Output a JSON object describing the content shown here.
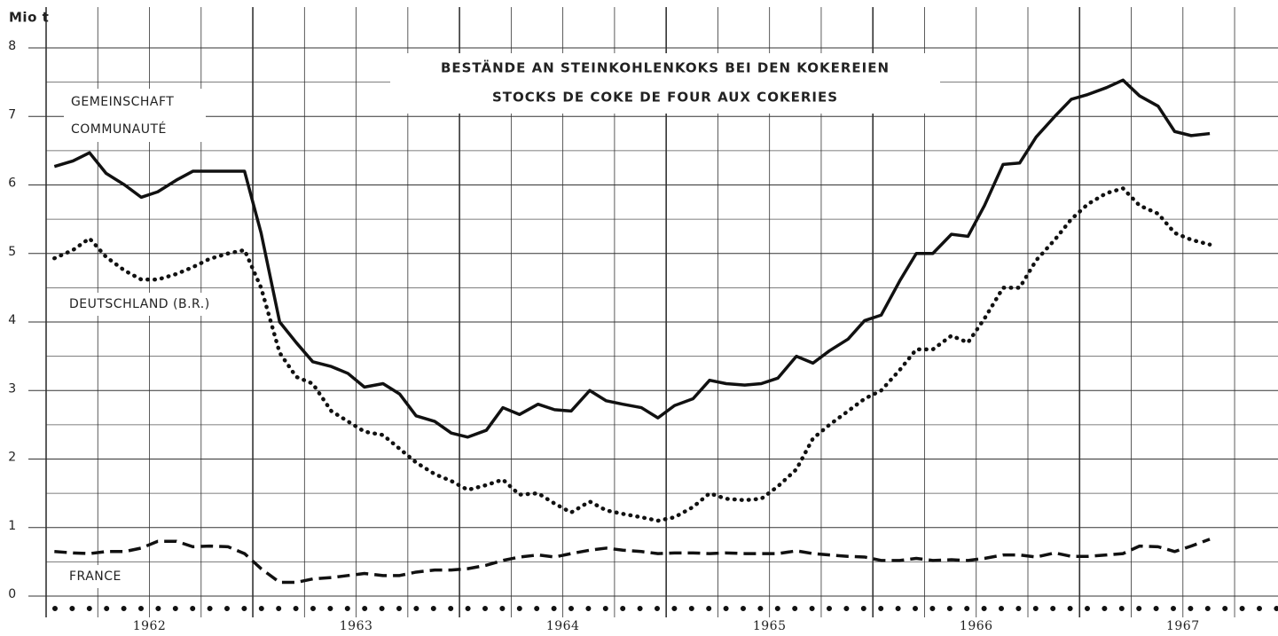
{
  "chart_data": {
    "type": "line",
    "title": "BESTÄNDE AN STEINKOHLENKOKS BEI DEN KOKEREIEN",
    "subtitle": "STOCKS DE COKE DE FOUR AUX COKERIES",
    "ylabel": "Mio t",
    "x": [
      1962.04,
      1962.13,
      1962.21,
      1962.29,
      1962.38,
      1962.46,
      1962.54,
      1962.63,
      1962.71,
      1962.79,
      1962.88,
      1962.96,
      1963.04,
      1963.13,
      1963.21,
      1963.29,
      1963.38,
      1963.46,
      1963.54,
      1963.63,
      1963.71,
      1963.79,
      1963.88,
      1963.96,
      1964.04,
      1964.13,
      1964.21,
      1964.29,
      1964.38,
      1964.46,
      1964.54,
      1964.63,
      1964.71,
      1964.79,
      1964.88,
      1964.96,
      1965.04,
      1965.13,
      1965.21,
      1965.29,
      1965.38,
      1965.46,
      1965.54,
      1965.63,
      1965.71,
      1965.79,
      1965.88,
      1965.96,
      1966.04,
      1966.13,
      1966.21,
      1966.29,
      1966.38,
      1966.46,
      1966.54,
      1966.63,
      1966.71,
      1966.79,
      1966.88,
      1966.96,
      1967.04,
      1967.13,
      1967.21,
      1967.29,
      1967.38,
      1967.46,
      1967.54,
      1967.63
    ],
    "series": [
      {
        "name": "GEMEINSCHAFT",
        "name_2": "COMMUNAUTÉ",
        "color": "#111111",
        "dash": "solid",
        "values": [
          6.27,
          6.35,
          6.47,
          6.17,
          6.0,
          5.82,
          5.9,
          6.07,
          6.2,
          6.2,
          6.2,
          6.2,
          5.3,
          4.0,
          3.7,
          3.42,
          3.35,
          3.25,
          3.05,
          3.1,
          2.95,
          2.63,
          2.55,
          2.38,
          2.32,
          2.42,
          2.75,
          2.65,
          2.8,
          2.72,
          2.7,
          3.0,
          2.85,
          2.8,
          2.75,
          2.6,
          2.78,
          2.88,
          3.15,
          3.1,
          3.08,
          3.1,
          3.18,
          3.5,
          3.4,
          3.58,
          3.75,
          4.02,
          4.1,
          4.6,
          5.0,
          5.0,
          5.28,
          5.25,
          5.7,
          6.3,
          6.32,
          6.7,
          7.0,
          7.25,
          7.32,
          7.42,
          7.53,
          7.3,
          7.15,
          6.78,
          6.72,
          6.75
        ]
      },
      {
        "name": "DEUTSCHLAND (B.R.)",
        "color": "#111111",
        "dash": "dotted",
        "values": [
          4.93,
          5.05,
          5.22,
          4.95,
          4.75,
          4.62,
          4.62,
          4.7,
          4.8,
          4.92,
          5.0,
          5.05,
          4.5,
          3.55,
          3.2,
          3.1,
          2.7,
          2.55,
          2.4,
          2.35,
          2.15,
          1.95,
          1.78,
          1.68,
          1.55,
          1.62,
          1.7,
          1.48,
          1.5,
          1.35,
          1.22,
          1.38,
          1.25,
          1.2,
          1.15,
          1.1,
          1.15,
          1.3,
          1.5,
          1.42,
          1.4,
          1.42,
          1.6,
          1.85,
          2.3,
          2.5,
          2.7,
          2.88,
          3.0,
          3.3,
          3.6,
          3.6,
          3.8,
          3.7,
          4.05,
          4.5,
          4.5,
          4.9,
          5.2,
          5.5,
          5.72,
          5.88,
          5.95,
          5.7,
          5.58,
          5.3,
          5.2,
          5.13
        ]
      },
      {
        "name": "FRANCE",
        "color": "#111111",
        "dash": "dashed",
        "values": [
          0.65,
          0.63,
          0.62,
          0.65,
          0.65,
          0.7,
          0.8,
          0.8,
          0.72,
          0.73,
          0.72,
          0.62,
          0.4,
          0.2,
          0.2,
          0.25,
          0.27,
          0.3,
          0.33,
          0.3,
          0.3,
          0.35,
          0.38,
          0.38,
          0.4,
          0.45,
          0.52,
          0.57,
          0.6,
          0.57,
          0.62,
          0.67,
          0.7,
          0.67,
          0.65,
          0.62,
          0.63,
          0.63,
          0.62,
          0.63,
          0.62,
          0.62,
          0.62,
          0.66,
          0.62,
          0.6,
          0.58,
          0.57,
          0.52,
          0.52,
          0.55,
          0.52,
          0.53,
          0.52,
          0.55,
          0.6,
          0.6,
          0.57,
          0.63,
          0.58,
          0.58,
          0.6,
          0.62,
          0.73,
          0.72,
          0.65,
          0.73,
          0.83
        ]
      }
    ],
    "xlim": [
      1962,
      1967.96
    ],
    "xticks": [
      {
        "value": 1962.5,
        "label": "1962"
      },
      {
        "value": 1963.5,
        "label": "1963"
      },
      {
        "value": 1964.5,
        "label": "1964"
      },
      {
        "value": 1965.5,
        "label": "1965"
      },
      {
        "value": 1966.5,
        "label": "1966"
      },
      {
        "value": 1967.5,
        "label": "1967"
      }
    ],
    "xgrid": [
      1962,
      1962.25,
      1962.5,
      1962.75,
      1963,
      1963.25,
      1963.5,
      1963.75,
      1964,
      1964.25,
      1964.5,
      1964.75,
      1965,
      1965.25,
      1965.5,
      1965.75,
      1966,
      1966.25,
      1966.5,
      1966.75,
      1967,
      1967.25,
      1967.5,
      1967.75
    ],
    "ylim": [
      0,
      8
    ],
    "yticks": [
      0,
      1,
      2,
      3,
      4,
      5,
      6,
      7,
      8
    ],
    "yminor": [
      0.5,
      1.5,
      2.5,
      3.5,
      4.5,
      5.5,
      6.5,
      7.5
    ],
    "grid": true
  }
}
